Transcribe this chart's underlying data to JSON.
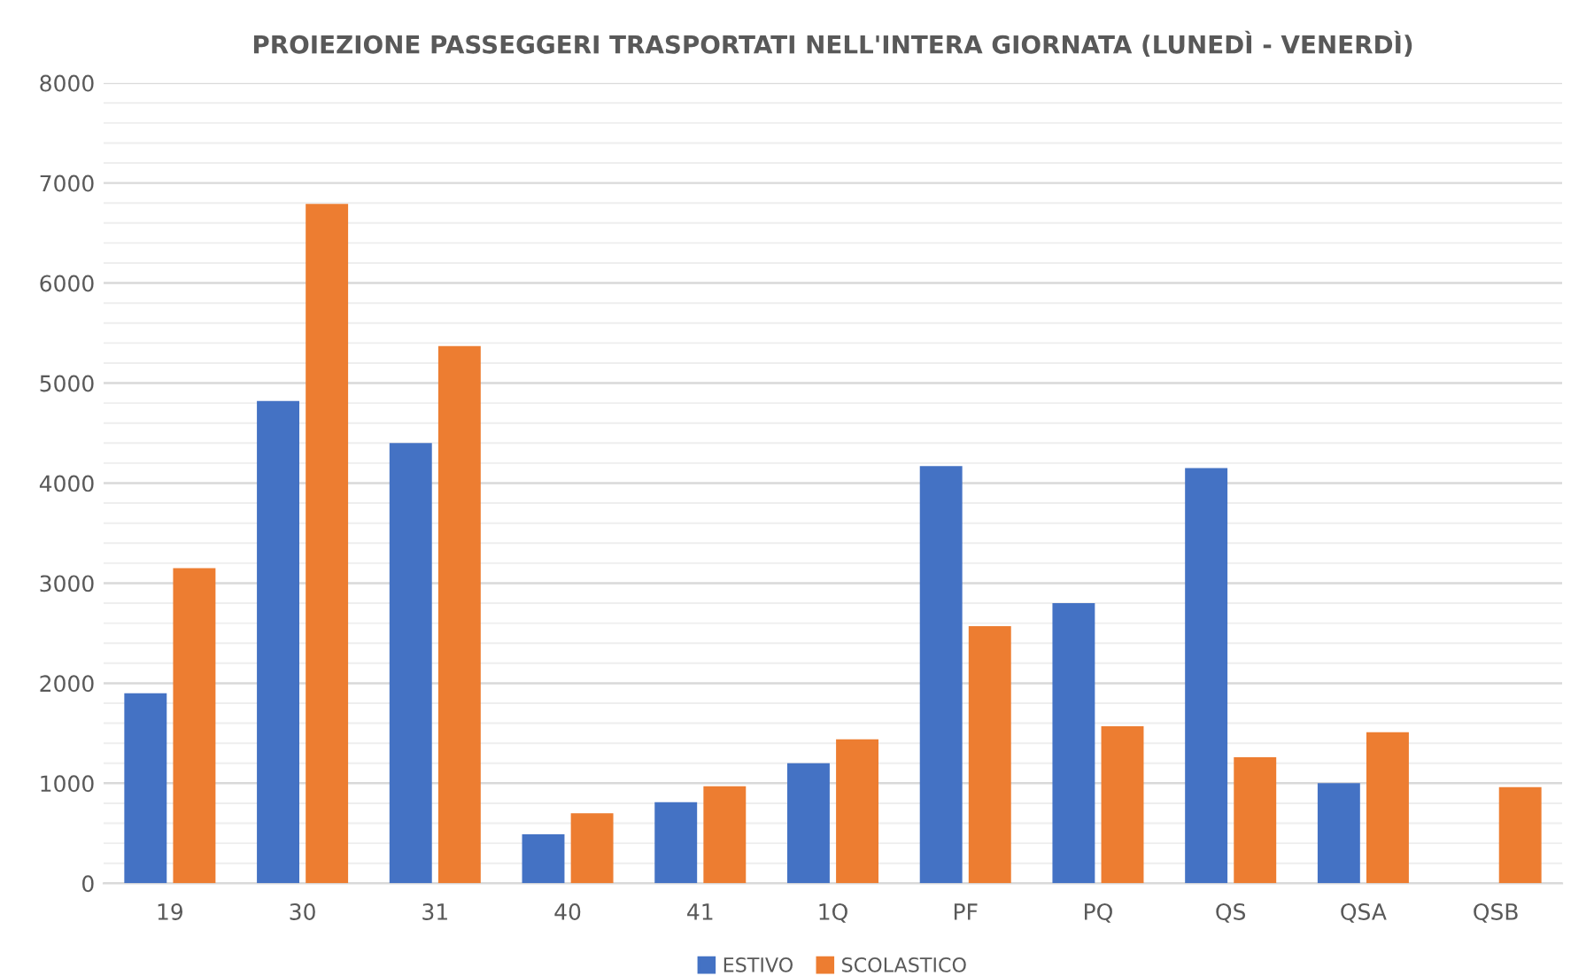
{
  "chart_data": {
    "type": "bar",
    "title": "PROIEZIONE PASSEGGERI TRASPORTATI NELL'INTERA GIORNATA (LUNEDÌ - VENERDÌ)",
    "categories": [
      "19",
      "30",
      "31",
      "40",
      "41",
      "1Q",
      "PF",
      "PQ",
      "QS",
      "QSA",
      "QSB"
    ],
    "series": [
      {
        "name": "ESTIVO",
        "color": "#4472c4",
        "values": [
          1900,
          4820,
          4400,
          490,
          810,
          1200,
          4170,
          2800,
          4150,
          1000,
          null
        ]
      },
      {
        "name": "SCOLASTICO",
        "color": "#ed7d31",
        "values": [
          3150,
          6790,
          5370,
          700,
          970,
          1440,
          2570,
          1570,
          1260,
          1510,
          960
        ]
      }
    ],
    "ylim": [
      0,
      8000
    ],
    "yticks": [
      0,
      {
        "value": 200,
        "label": null
      },
      {
        "value": 400,
        "label": null
      },
      {
        "value": 600,
        "label": null
      },
      {
        "value": 800,
        "label": null
      },
      1000,
      {
        "value": 1200,
        "label": null
      },
      {
        "value": 1400,
        "label": null
      },
      {
        "value": 1600,
        "label": null
      },
      {
        "value": 1800,
        "label": null
      },
      2000,
      {
        "value": 2200,
        "label": null
      },
      {
        "value": 2400,
        "label": null
      },
      {
        "value": 2600,
        "label": null
      },
      {
        "value": 2800,
        "label": null
      },
      3000,
      {
        "value": 3200,
        "label": null
      },
      {
        "value": 3400,
        "label": null
      },
      {
        "value": 3600,
        "label": null
      },
      {
        "value": 3800,
        "label": null
      },
      4000,
      {
        "value": 4200,
        "label": null
      },
      {
        "value": 4400,
        "label": null
      },
      {
        "value": 4600,
        "label": null
      },
      {
        "value": 4800,
        "label": null
      },
      5000,
      {
        "value": 5200,
        "label": null
      },
      {
        "value": 5400,
        "label": null
      },
      {
        "value": 5600,
        "label": null
      },
      {
        "value": 5800,
        "label": null
      },
      6000,
      {
        "value": 6200,
        "label": null
      },
      {
        "value": 6400,
        "label": null
      },
      {
        "value": 6600,
        "label": null
      },
      {
        "value": 6800,
        "label": null
      },
      7000,
      {
        "value": 7200,
        "label": null
      },
      {
        "value": 7400,
        "label": null
      },
      {
        "value": 7600,
        "label": null
      },
      {
        "value": 7800,
        "label": null
      },
      8000
    ],
    "grid": "y",
    "legend": "bottom"
  }
}
